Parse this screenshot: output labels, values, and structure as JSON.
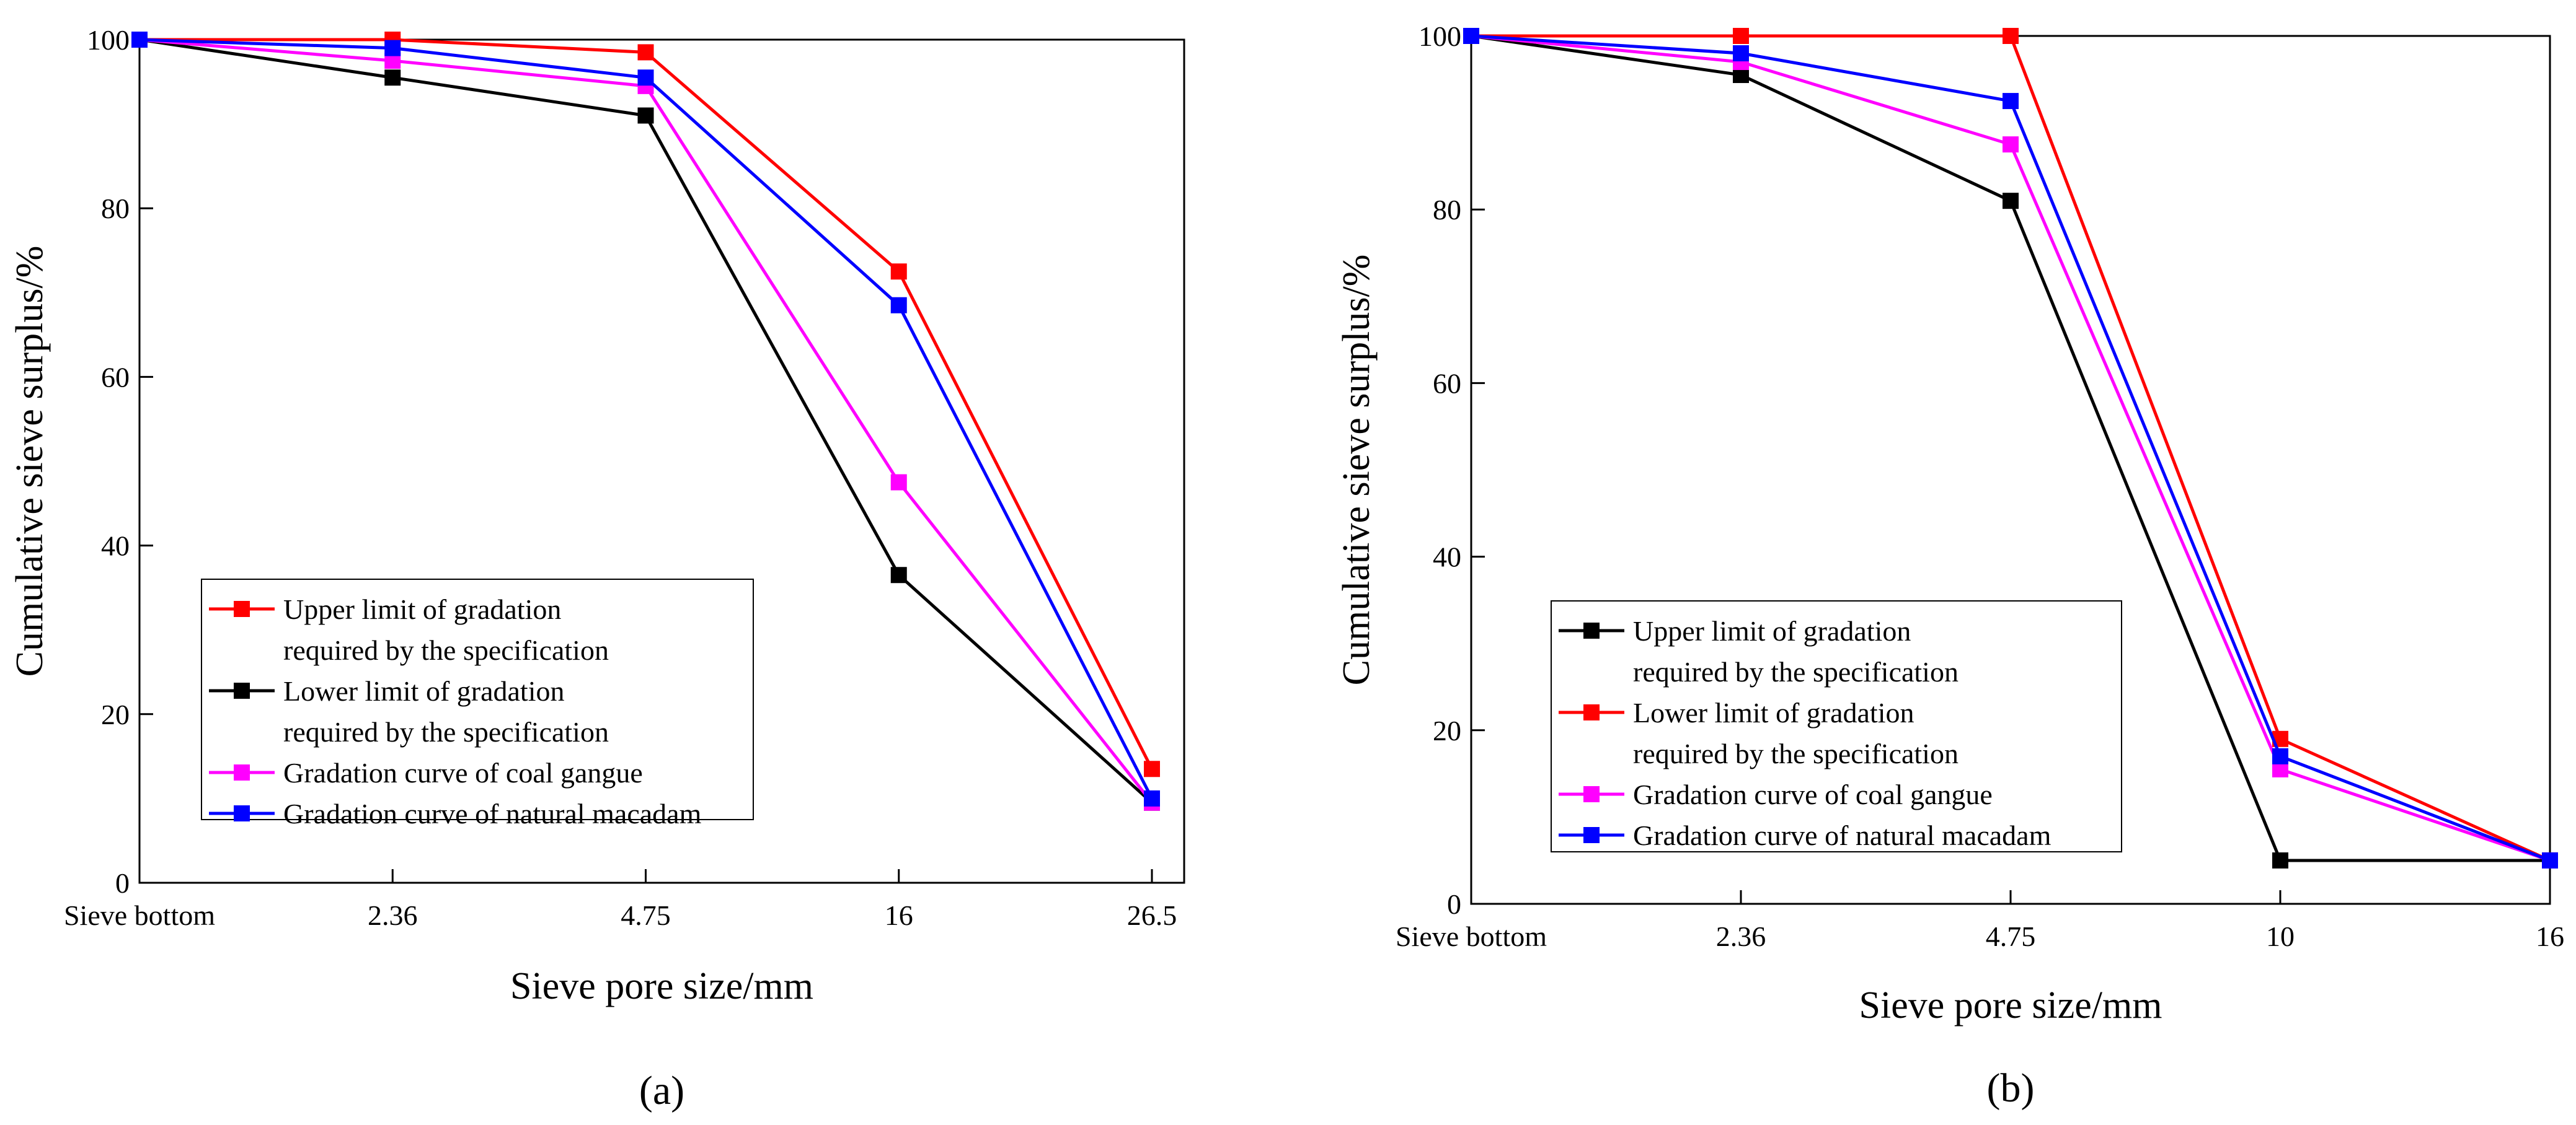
{
  "chart_data": [
    {
      "type": "line",
      "panel_label": "(a)",
      "xlabel": "Sieve pore size/mm",
      "ylabel": "Cumulative sieve surplus/%",
      "categories": [
        "Sieve bottom",
        "2.36",
        "4.75",
        "16",
        "26.5"
      ],
      "ylim": [
        0,
        100
      ],
      "yticks": [
        "0",
        "20",
        "40",
        "60",
        "80",
        "100"
      ],
      "legend_position": "lower-left",
      "series": [
        {
          "name": "Upper limit of gradation",
          "name_line2": "required by the specification",
          "color": "#ff0000",
          "values": [
            100,
            100,
            98.5,
            72.5,
            13.5
          ]
        },
        {
          "name": "Lower limit of gradation",
          "name_line2": "required by the specification",
          "color": "#000000",
          "values": [
            100,
            95.5,
            91,
            36.5,
            9.5
          ]
        },
        {
          "name": "Gradation curve of coal gangue",
          "color": "#ff00ff",
          "values": [
            100,
            97.5,
            94.5,
            47.5,
            9.5
          ]
        },
        {
          "name": "Gradation curve of natural macadam",
          "color": "#0000ff",
          "values": [
            100,
            99,
            95.5,
            68.5,
            10
          ]
        }
      ]
    },
    {
      "type": "line",
      "panel_label": "(b)",
      "xlabel": "Sieve pore size/mm",
      "ylabel": "Cumulative sieve surplus/%",
      "categories": [
        "Sieve bottom",
        "2.36",
        "4.75",
        "10",
        "16"
      ],
      "ylim": [
        0,
        100
      ],
      "yticks": [
        "0",
        "20",
        "40",
        "60",
        "80",
        "100"
      ],
      "legend_position": "lower-left",
      "series": [
        {
          "name": "Upper limit of gradation",
          "name_line2": "required by the specification",
          "color": "#000000",
          "values": [
            100,
            95.5,
            81,
            5,
            5
          ]
        },
        {
          "name": "Lower limit of gradation",
          "name_line2": "required by the specification",
          "color": "#ff0000",
          "values": [
            100,
            100,
            100,
            19,
            5
          ]
        },
        {
          "name": "Gradation curve of coal gangue",
          "color": "#ff00ff",
          "values": [
            100,
            97,
            87.5,
            15.5,
            5
          ]
        },
        {
          "name": "Gradation curve of natural macadam",
          "color": "#0000ff",
          "values": [
            100,
            98,
            92.5,
            17,
            5
          ]
        }
      ]
    }
  ]
}
